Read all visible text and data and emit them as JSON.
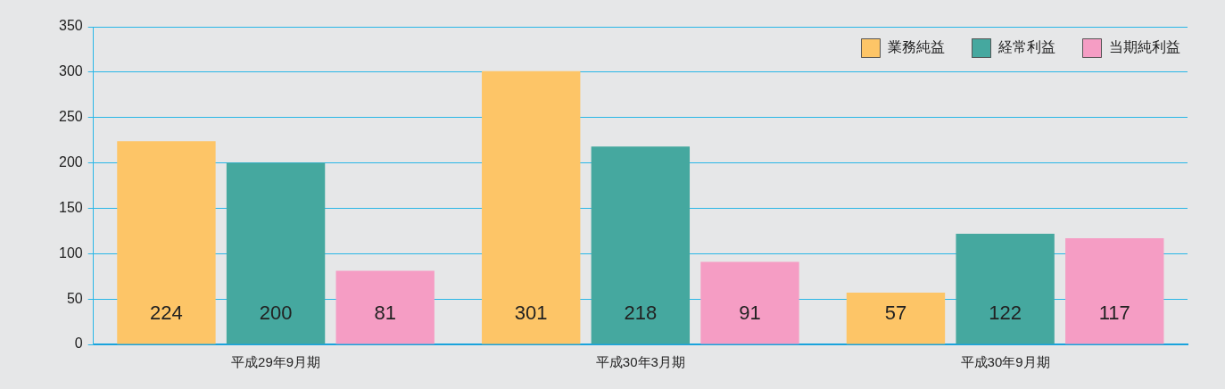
{
  "chart_data": {
    "type": "bar",
    "categories": [
      "平成29年9月期",
      "平成30年3月期",
      "平成30年9月期"
    ],
    "series": [
      {
        "name": "業務純益",
        "color": "#fdc567",
        "values": [
          224,
          301,
          57
        ]
      },
      {
        "name": "経常利益",
        "color": "#45a89f",
        "values": [
          200,
          218,
          122
        ]
      },
      {
        "name": "当期純利益",
        "color": "#f59dc4",
        "values": [
          81,
          91,
          117
        ]
      }
    ],
    "ylim": [
      0,
      350
    ],
    "yticks": [
      0,
      50,
      100,
      150,
      200,
      250,
      300,
      350
    ],
    "grid": "y",
    "legend": "top right",
    "data_labels": true
  }
}
